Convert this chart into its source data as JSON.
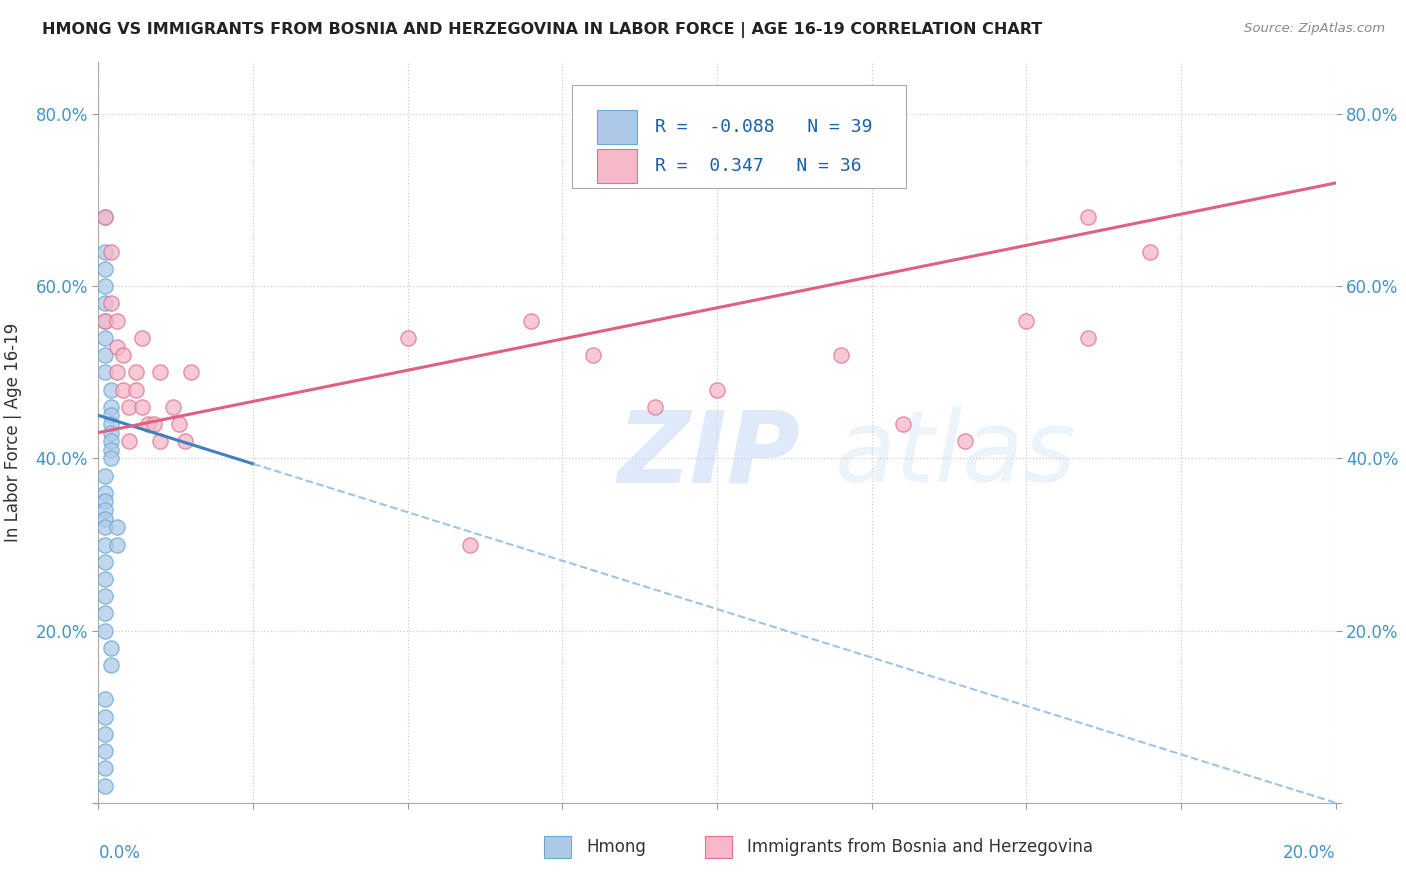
{
  "title": "HMONG VS IMMIGRANTS FROM BOSNIA AND HERZEGOVINA IN LABOR FORCE | AGE 16-19 CORRELATION CHART",
  "source": "Source: ZipAtlas.com",
  "ylabel": "In Labor Force | Age 16-19",
  "x_range": [
    0.0,
    0.2
  ],
  "y_range": [
    0.0,
    0.86
  ],
  "hmong_color": "#aec9e8",
  "hmong_edge": "#6aaad4",
  "bosnia_color": "#f5b8c8",
  "bosnia_edge": "#e07090",
  "regression_hmong_color": "#4080c0",
  "regression_bosnia_color": "#e06080",
  "dashed_color": "#90b8e0",
  "R_hmong": -0.088,
  "N_hmong": 39,
  "R_bosnia": 0.347,
  "N_bosnia": 36,
  "legend_label_hmong": "Hmong",
  "legend_label_bosnia": "Immigrants from Bosnia and Herzegovina",
  "background_color": "#ffffff",
  "tick_color": "#4393c3",
  "hmong_x": [
    0.001,
    0.001,
    0.001,
    0.001,
    0.001,
    0.001,
    0.001,
    0.001,
    0.001,
    0.002,
    0.002,
    0.002,
    0.002,
    0.002,
    0.002,
    0.002,
    0.002,
    0.001,
    0.001,
    0.001,
    0.001,
    0.001,
    0.001,
    0.001,
    0.001,
    0.001,
    0.001,
    0.001,
    0.001,
    0.002,
    0.002,
    0.003,
    0.003,
    0.001,
    0.001,
    0.001,
    0.001,
    0.001,
    0.001
  ],
  "hmong_y": [
    0.68,
    0.64,
    0.62,
    0.6,
    0.58,
    0.56,
    0.54,
    0.52,
    0.5,
    0.48,
    0.46,
    0.45,
    0.44,
    0.43,
    0.42,
    0.41,
    0.4,
    0.38,
    0.36,
    0.35,
    0.34,
    0.33,
    0.32,
    0.3,
    0.28,
    0.26,
    0.24,
    0.22,
    0.2,
    0.18,
    0.16,
    0.32,
    0.3,
    0.12,
    0.1,
    0.08,
    0.06,
    0.04,
    0.02
  ],
  "bosnia_x": [
    0.001,
    0.001,
    0.002,
    0.002,
    0.003,
    0.003,
    0.003,
    0.004,
    0.004,
    0.005,
    0.005,
    0.006,
    0.006,
    0.007,
    0.007,
    0.008,
    0.009,
    0.01,
    0.01,
    0.012,
    0.013,
    0.014,
    0.015,
    0.05,
    0.06,
    0.07,
    0.08,
    0.09,
    0.1,
    0.12,
    0.13,
    0.14,
    0.15,
    0.16,
    0.16,
    0.17
  ],
  "bosnia_y": [
    0.68,
    0.56,
    0.64,
    0.58,
    0.56,
    0.53,
    0.5,
    0.52,
    0.48,
    0.46,
    0.42,
    0.5,
    0.48,
    0.54,
    0.46,
    0.44,
    0.44,
    0.5,
    0.42,
    0.46,
    0.44,
    0.42,
    0.5,
    0.54,
    0.3,
    0.56,
    0.52,
    0.46,
    0.48,
    0.52,
    0.44,
    0.42,
    0.56,
    0.54,
    0.68,
    0.64
  ]
}
